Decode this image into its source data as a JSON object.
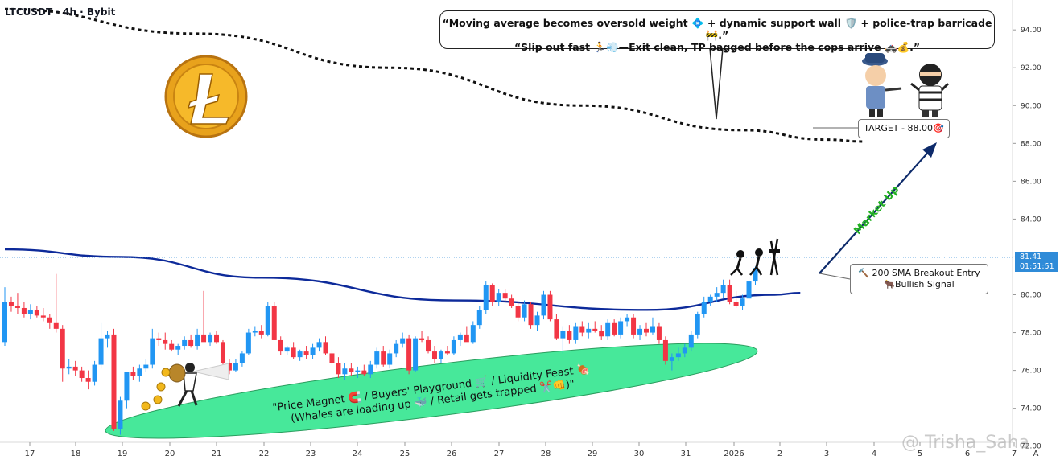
{
  "header": {
    "symbol": "LTCUSDT · 4h · Bybit"
  },
  "bubble": {
    "line1": "“Moving average becomes oversold weight 💠 + dynamic support wall 🛡️ + police-trap barricade 🚧.”",
    "line2": "“Slip out fast 🏃💨—Exit clean, TP bagged before the cops arrive 🚓💰.”"
  },
  "target_label": "TARGET - 88.00🎯",
  "sma_label": {
    "line1": "🔨 200 SMA Breakout Entry",
    "line2": "🐂Bullish Signal"
  },
  "market_up": "Market Up",
  "ellipse_text": {
    "line1": "\"Price Magnet 🧲 / Buyers' Playground 🛒 / Liquidity Feast 🍖",
    "line2": "(Whales are loading up 🐳 / Retail gets trapped ✂️👊)\""
  },
  "price_tag": {
    "price": "81.41",
    "timer": "01:51:51"
  },
  "watermark": "@ Trisha_Saha",
  "icons": [
    "litecoin-coin-icon",
    "police-officer-icon",
    "robber-icon",
    "thief-with-money-bag-icon",
    "barricade-thieves-icon",
    "dollar-coin-icon"
  ],
  "colors": {
    "bull": "#2196f3",
    "bear": "#f23645",
    "sma200": "#0d2a9a",
    "ema": "#111111",
    "zone": "#47e89a",
    "market_up": "#22b022",
    "arrow": "#0d2a6a"
  },
  "chart_data": {
    "type": "candlestick",
    "timeframe": "4h",
    "y_axis": {
      "ticks": [
        "72.00",
        "74.00",
        "76.00",
        "78.00",
        "80.00",
        "82.00",
        "84.00",
        "86.00",
        "88.00",
        "90.00",
        "92.00",
        "94.00"
      ],
      "range": [
        72.2,
        94.9
      ]
    },
    "x_axis": {
      "ticks": [
        "17",
        "18",
        "19",
        "20",
        "21",
        "22",
        "23",
        "24",
        "25",
        "26",
        "27",
        "28",
        "29",
        "30",
        "31",
        "2026",
        "2",
        "3",
        "4",
        "5",
        "6",
        "7"
      ],
      "extra": "A"
    },
    "last_price": 81.41,
    "target": 88.0,
    "candles": [
      {
        "o": 77.5,
        "h": 80.4,
        "l": 77.3,
        "c": 79.6
      },
      {
        "o": 79.6,
        "h": 79.9,
        "l": 79.1,
        "c": 79.4
      },
      {
        "o": 79.4,
        "h": 80.1,
        "l": 79.0,
        "c": 79.3
      },
      {
        "o": 79.3,
        "h": 79.6,
        "l": 78.8,
        "c": 79.0
      },
      {
        "o": 79.0,
        "h": 79.5,
        "l": 78.7,
        "c": 79.2
      },
      {
        "o": 79.2,
        "h": 79.4,
        "l": 78.8,
        "c": 78.9
      },
      {
        "o": 78.9,
        "h": 79.3,
        "l": 78.6,
        "c": 78.8
      },
      {
        "o": 78.8,
        "h": 79.0,
        "l": 78.2,
        "c": 78.5
      },
      {
        "o": 78.5,
        "h": 81.1,
        "l": 78.0,
        "c": 78.2
      },
      {
        "o": 78.2,
        "h": 78.4,
        "l": 75.4,
        "c": 76.1
      },
      {
        "o": 76.1,
        "h": 76.6,
        "l": 75.8,
        "c": 76.2
      },
      {
        "o": 76.2,
        "h": 76.5,
        "l": 75.7,
        "c": 76.0
      },
      {
        "o": 76.0,
        "h": 76.2,
        "l": 75.4,
        "c": 75.6
      },
      {
        "o": 75.6,
        "h": 76.0,
        "l": 75.0,
        "c": 75.4
      },
      {
        "o": 75.4,
        "h": 76.5,
        "l": 75.2,
        "c": 76.3
      },
      {
        "o": 76.3,
        "h": 78.5,
        "l": 76.1,
        "c": 77.7
      },
      {
        "o": 77.7,
        "h": 78.1,
        "l": 77.2,
        "c": 77.9
      },
      {
        "o": 77.9,
        "h": 78.2,
        "l": 72.8,
        "c": 72.9
      },
      {
        "o": 72.9,
        "h": 74.6,
        "l": 72.6,
        "c": 74.4
      },
      {
        "o": 74.4,
        "h": 75.8,
        "l": 74.0,
        "c": 75.9
      },
      {
        "o": 75.9,
        "h": 76.2,
        "l": 75.5,
        "c": 75.7
      },
      {
        "o": 75.7,
        "h": 76.3,
        "l": 75.4,
        "c": 76.1
      },
      {
        "o": 76.1,
        "h": 76.6,
        "l": 75.9,
        "c": 76.3
      },
      {
        "o": 76.3,
        "h": 78.2,
        "l": 76.1,
        "c": 77.7
      },
      {
        "o": 77.7,
        "h": 78.0,
        "l": 77.3,
        "c": 77.6
      },
      {
        "o": 77.6,
        "h": 78.0,
        "l": 77.1,
        "c": 77.4
      },
      {
        "o": 77.4,
        "h": 77.6,
        "l": 77.0,
        "c": 77.1
      },
      {
        "o": 77.1,
        "h": 77.4,
        "l": 76.8,
        "c": 77.3
      },
      {
        "o": 77.3,
        "h": 77.8,
        "l": 77.1,
        "c": 77.6
      },
      {
        "o": 77.6,
        "h": 77.9,
        "l": 77.2,
        "c": 77.3
      },
      {
        "o": 77.3,
        "h": 78.2,
        "l": 77.1,
        "c": 77.9
      },
      {
        "o": 77.9,
        "h": 80.2,
        "l": 77.7,
        "c": 77.5
      },
      {
        "o": 77.5,
        "h": 78.0,
        "l": 77.3,
        "c": 77.9
      },
      {
        "o": 77.9,
        "h": 78.1,
        "l": 77.4,
        "c": 77.5
      },
      {
        "o": 77.5,
        "h": 77.6,
        "l": 76.3,
        "c": 76.4
      },
      {
        "o": 76.4,
        "h": 76.6,
        "l": 75.8,
        "c": 76.0
      },
      {
        "o": 76.0,
        "h": 76.6,
        "l": 75.9,
        "c": 76.4
      },
      {
        "o": 76.4,
        "h": 77.0,
        "l": 76.2,
        "c": 76.9
      },
      {
        "o": 76.9,
        "h": 78.2,
        "l": 76.8,
        "c": 78.0
      },
      {
        "o": 78.0,
        "h": 78.3,
        "l": 77.8,
        "c": 78.1
      },
      {
        "o": 78.1,
        "h": 78.4,
        "l": 77.7,
        "c": 77.9
      },
      {
        "o": 77.9,
        "h": 79.6,
        "l": 77.8,
        "c": 79.4
      },
      {
        "o": 79.4,
        "h": 79.6,
        "l": 77.6,
        "c": 77.6
      },
      {
        "o": 77.6,
        "h": 77.8,
        "l": 76.8,
        "c": 77.0
      },
      {
        "o": 77.0,
        "h": 77.3,
        "l": 76.8,
        "c": 77.2
      },
      {
        "o": 77.2,
        "h": 77.5,
        "l": 76.6,
        "c": 76.7
      },
      {
        "o": 76.7,
        "h": 77.1,
        "l": 76.5,
        "c": 77.0
      },
      {
        "o": 77.0,
        "h": 77.3,
        "l": 76.6,
        "c": 76.8
      },
      {
        "o": 76.8,
        "h": 77.4,
        "l": 76.6,
        "c": 77.2
      },
      {
        "o": 77.2,
        "h": 77.7,
        "l": 77.0,
        "c": 77.5
      },
      {
        "o": 77.5,
        "h": 77.8,
        "l": 76.8,
        "c": 76.9
      },
      {
        "o": 76.9,
        "h": 77.1,
        "l": 76.3,
        "c": 76.4
      },
      {
        "o": 76.4,
        "h": 76.7,
        "l": 75.6,
        "c": 75.8
      },
      {
        "o": 75.8,
        "h": 76.4,
        "l": 75.5,
        "c": 76.1
      },
      {
        "o": 76.1,
        "h": 76.4,
        "l": 75.7,
        "c": 75.9
      },
      {
        "o": 75.9,
        "h": 76.2,
        "l": 75.6,
        "c": 76.0
      },
      {
        "o": 76.0,
        "h": 76.3,
        "l": 75.7,
        "c": 75.8
      },
      {
        "o": 75.8,
        "h": 76.5,
        "l": 75.6,
        "c": 76.3
      },
      {
        "o": 76.3,
        "h": 77.2,
        "l": 76.1,
        "c": 77.0
      },
      {
        "o": 77.0,
        "h": 77.3,
        "l": 76.2,
        "c": 76.3
      },
      {
        "o": 76.3,
        "h": 77.1,
        "l": 76.1,
        "c": 76.9
      },
      {
        "o": 76.9,
        "h": 77.6,
        "l": 76.7,
        "c": 77.4
      },
      {
        "o": 77.4,
        "h": 78.0,
        "l": 77.2,
        "c": 77.7
      },
      {
        "o": 77.7,
        "h": 77.9,
        "l": 75.8,
        "c": 76.0
      },
      {
        "o": 76.0,
        "h": 77.8,
        "l": 75.9,
        "c": 77.7
      },
      {
        "o": 77.7,
        "h": 78.1,
        "l": 77.5,
        "c": 77.6
      },
      {
        "o": 77.6,
        "h": 77.8,
        "l": 76.9,
        "c": 77.0
      },
      {
        "o": 77.0,
        "h": 77.3,
        "l": 76.4,
        "c": 76.6
      },
      {
        "o": 76.6,
        "h": 77.1,
        "l": 76.4,
        "c": 77.0
      },
      {
        "o": 77.0,
        "h": 77.3,
        "l": 76.8,
        "c": 76.9
      },
      {
        "o": 76.9,
        "h": 77.8,
        "l": 76.8,
        "c": 77.6
      },
      {
        "o": 77.6,
        "h": 78.0,
        "l": 77.3,
        "c": 77.9
      },
      {
        "o": 77.9,
        "h": 78.3,
        "l": 77.7,
        "c": 77.5
      },
      {
        "o": 77.5,
        "h": 78.6,
        "l": 77.4,
        "c": 78.4
      },
      {
        "o": 78.4,
        "h": 79.4,
        "l": 78.2,
        "c": 79.2
      },
      {
        "o": 79.2,
        "h": 80.7,
        "l": 79.0,
        "c": 80.5
      },
      {
        "o": 80.5,
        "h": 80.6,
        "l": 79.4,
        "c": 79.6
      },
      {
        "o": 79.6,
        "h": 80.3,
        "l": 79.4,
        "c": 80.1
      },
      {
        "o": 80.1,
        "h": 80.3,
        "l": 79.6,
        "c": 79.8
      },
      {
        "o": 79.8,
        "h": 80.0,
        "l": 79.3,
        "c": 79.4
      },
      {
        "o": 79.4,
        "h": 79.6,
        "l": 78.6,
        "c": 78.8
      },
      {
        "o": 78.8,
        "h": 79.7,
        "l": 78.6,
        "c": 79.5
      },
      {
        "o": 79.5,
        "h": 79.6,
        "l": 78.2,
        "c": 78.4
      },
      {
        "o": 78.4,
        "h": 79.1,
        "l": 78.1,
        "c": 78.9
      },
      {
        "o": 78.9,
        "h": 80.2,
        "l": 78.7,
        "c": 80.0
      },
      {
        "o": 80.0,
        "h": 80.2,
        "l": 78.6,
        "c": 78.7
      },
      {
        "o": 78.7,
        "h": 79.0,
        "l": 77.6,
        "c": 77.7
      },
      {
        "o": 77.7,
        "h": 78.3,
        "l": 76.9,
        "c": 78.1
      },
      {
        "o": 78.1,
        "h": 78.4,
        "l": 77.4,
        "c": 77.6
      },
      {
        "o": 77.6,
        "h": 78.5,
        "l": 77.4,
        "c": 78.3
      },
      {
        "o": 78.3,
        "h": 78.6,
        "l": 77.8,
        "c": 78.0
      },
      {
        "o": 78.0,
        "h": 78.5,
        "l": 77.7,
        "c": 78.2
      },
      {
        "o": 78.2,
        "h": 78.6,
        "l": 78.0,
        "c": 78.1
      },
      {
        "o": 78.1,
        "h": 78.4,
        "l": 77.6,
        "c": 77.8
      },
      {
        "o": 77.8,
        "h": 78.7,
        "l": 77.6,
        "c": 78.5
      },
      {
        "o": 78.5,
        "h": 78.7,
        "l": 77.8,
        "c": 77.9
      },
      {
        "o": 77.9,
        "h": 78.8,
        "l": 77.7,
        "c": 78.6
      },
      {
        "o": 78.6,
        "h": 79.0,
        "l": 78.3,
        "c": 78.8
      },
      {
        "o": 78.8,
        "h": 79.0,
        "l": 77.7,
        "c": 77.9
      },
      {
        "o": 77.9,
        "h": 78.4,
        "l": 77.6,
        "c": 78.2
      },
      {
        "o": 78.2,
        "h": 78.5,
        "l": 77.8,
        "c": 78.0
      },
      {
        "o": 78.0,
        "h": 78.8,
        "l": 77.9,
        "c": 78.3
      },
      {
        "o": 78.3,
        "h": 78.5,
        "l": 77.4,
        "c": 77.6
      },
      {
        "o": 77.6,
        "h": 77.8,
        "l": 76.3,
        "c": 76.5
      },
      {
        "o": 76.5,
        "h": 76.9,
        "l": 76.0,
        "c": 76.7
      },
      {
        "o": 76.7,
        "h": 77.2,
        "l": 76.5,
        "c": 76.9
      },
      {
        "o": 76.9,
        "h": 77.4,
        "l": 76.7,
        "c": 77.2
      },
      {
        "o": 77.2,
        "h": 78.1,
        "l": 77.0,
        "c": 77.9
      },
      {
        "o": 77.9,
        "h": 79.1,
        "l": 77.7,
        "c": 79.0
      },
      {
        "o": 79.0,
        "h": 79.9,
        "l": 78.8,
        "c": 79.6
      },
      {
        "o": 79.6,
        "h": 80.0,
        "l": 79.4,
        "c": 79.9
      },
      {
        "o": 79.9,
        "h": 80.4,
        "l": 79.6,
        "c": 80.1
      },
      {
        "o": 80.1,
        "h": 80.8,
        "l": 79.8,
        "c": 80.5
      },
      {
        "o": 80.5,
        "h": 80.8,
        "l": 79.5,
        "c": 79.6
      },
      {
        "o": 79.6,
        "h": 80.2,
        "l": 79.3,
        "c": 79.4
      },
      {
        "o": 79.4,
        "h": 80.0,
        "l": 79.2,
        "c": 79.8
      },
      {
        "o": 79.8,
        "h": 80.9,
        "l": 79.7,
        "c": 80.7
      },
      {
        "o": 80.7,
        "h": 81.5,
        "l": 80.5,
        "c": 81.41
      }
    ],
    "indicators": [
      {
        "name": "200 SMA",
        "style": "solid",
        "points": [
          [
            0,
            82.4
          ],
          [
            18,
            82.0
          ],
          [
            40,
            80.9
          ],
          [
            70,
            79.7
          ],
          [
            100,
            79.2
          ],
          [
            120,
            80.0
          ],
          [
            124,
            80.1
          ]
        ]
      },
      {
        "name": "",
        "style": "dotted",
        "points": [
          [
            0,
            95.1
          ],
          [
            30,
            93.8
          ],
          [
            60,
            92.0
          ],
          [
            90,
            90.0
          ],
          [
            115,
            88.7
          ],
          [
            128,
            88.2
          ],
          [
            134,
            88.1
          ]
        ]
      }
    ]
  }
}
